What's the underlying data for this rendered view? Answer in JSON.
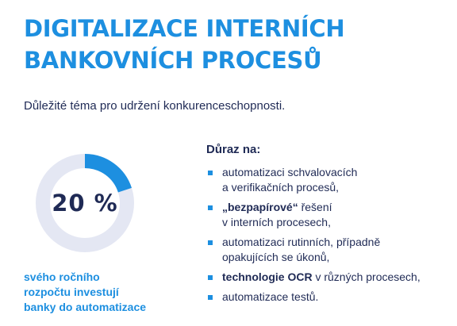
{
  "title": {
    "line1": "DIGITALIZACE INTERNÍCH",
    "line2": "BANKOVNÍCH PROCESŮ"
  },
  "subtitle": "Důležité téma pro udržení konkurenceschopnosti.",
  "stat": {
    "value": "20 %",
    "percent": 20,
    "caption": [
      "svého ročního",
      "rozpočtu investují",
      "banky do automatizace"
    ]
  },
  "emphasis": {
    "heading": "Důraz na:",
    "items": [
      {
        "lines": [
          "automatizaci schvalovacích",
          "a verifikačních procesů,"
        ]
      },
      {
        "bold": "„bezpapírové“",
        "rest": " řešení",
        "line2": "v interních procesech,"
      },
      {
        "lines": [
          "automatizaci rutinních, případně",
          "opakujících se úkonů,"
        ]
      },
      {
        "bold": "technologie OCR",
        "rest": " v různých procesech,"
      },
      {
        "lines": [
          "automatizace testů."
        ]
      }
    ]
  },
  "colors": {
    "accent": "#1d8fe0",
    "text": "#1f2a55",
    "donut_track": "#e4e7f3"
  }
}
